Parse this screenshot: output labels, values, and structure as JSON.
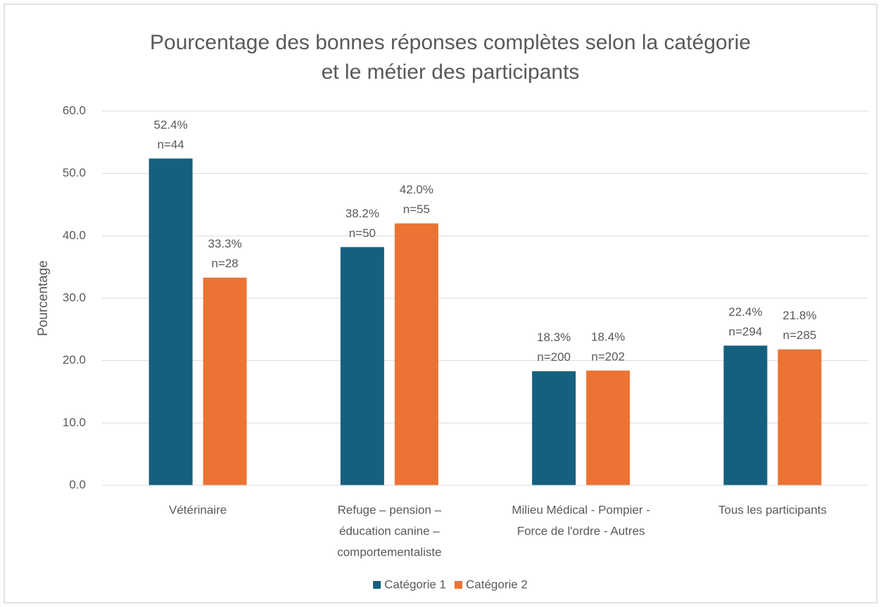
{
  "chart_data": {
    "type": "bar",
    "title": [
      "Pourcentage des bonnes réponses complètes selon la catégorie",
      "et le métier des participants"
    ],
    "y_label": "Pourcentage",
    "categories": [
      [
        "Vétérinaire"
      ],
      [
        "Refuge – pension –",
        "éducation canine –",
        "comportementaliste"
      ],
      [
        "Milieu Médical - Pompier -",
        "Force de l'ordre - Autres"
      ],
      [
        "Tous les participants"
      ]
    ],
    "series": [
      {
        "name": "Catégorie 1",
        "color": "#15607f",
        "values": [
          52.4,
          38.2,
          18.3,
          22.4
        ],
        "value_labels": [
          "52.4%",
          "38.2%",
          "18.3%",
          "22.4%"
        ],
        "n_labels": [
          "n=44",
          "n=50",
          "n=200",
          "n=294"
        ]
      },
      {
        "name": "Catégorie 2",
        "color": "#eb7334",
        "values": [
          33.3,
          42.0,
          18.4,
          21.8
        ],
        "value_labels": [
          "33.3%",
          "42.0%",
          "18.4%",
          "21.8%"
        ],
        "n_labels": [
          "n=28",
          "n=55",
          "n=202",
          "n=285"
        ]
      }
    ],
    "ylim": [
      0,
      60
    ],
    "yticks": [
      {
        "value": 0,
        "label": "0.0"
      },
      {
        "value": 10,
        "label": "10.0"
      },
      {
        "value": 20,
        "label": "20.0"
      },
      {
        "value": 30,
        "label": "30.0"
      },
      {
        "value": 40,
        "label": "40.0"
      },
      {
        "value": 50,
        "label": "50.0"
      },
      {
        "value": 60,
        "label": "60.0"
      }
    ],
    "grid": true,
    "legend": "bottom"
  }
}
